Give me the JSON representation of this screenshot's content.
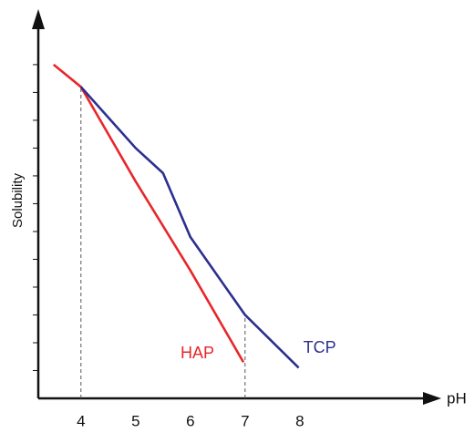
{
  "chart_data": {
    "type": "line",
    "y_label": "Solubility",
    "x_label": "pH",
    "xlim": [
      3.22,
      10.3
    ],
    "ylim": [
      0,
      13.8
    ],
    "xticks": [
      4,
      5,
      6,
      7,
      8
    ],
    "yticks": [
      1,
      2,
      3,
      4,
      5,
      6,
      7,
      8,
      9,
      10,
      11,
      12
    ],
    "series": [
      {
        "name": "HAP",
        "color": "#e8262a",
        "x": [
          3.5,
          4,
          5,
          6,
          6.97
        ],
        "values": [
          12.0,
          11.2,
          7.8,
          4.6,
          1.3
        ]
      },
      {
        "name": "TCP",
        "color": "#2b2f8f",
        "x": [
          4,
          5,
          5.5,
          6,
          7,
          7.98
        ],
        "values": [
          11.2,
          9.0,
          8.1,
          5.8,
          3.0,
          1.1
        ]
      }
    ]
  }
}
